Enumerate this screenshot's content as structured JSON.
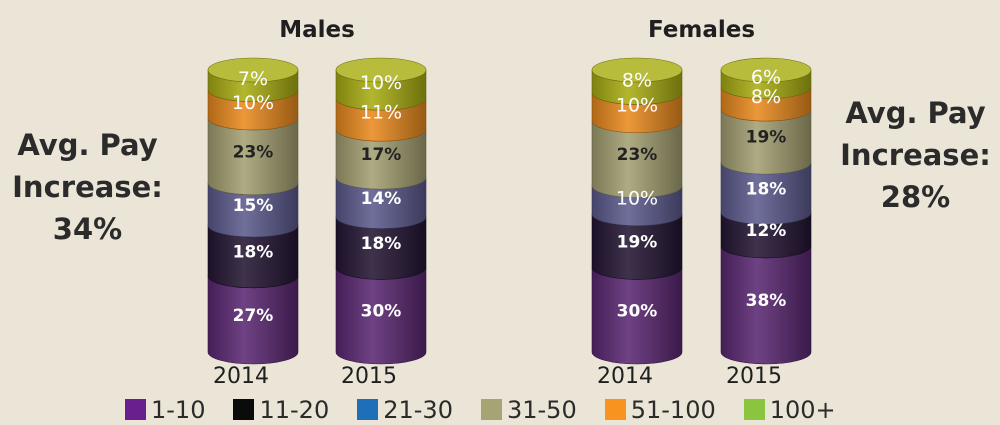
{
  "colors": {
    "background": "#eae5d7",
    "cats": [
      "#5a2872",
      "#251634",
      "#5c5b8d",
      "#a4a072",
      "#e98a1e",
      "#a9ad12"
    ],
    "legend_swatches": [
      "#6a1f8e",
      "#0b0b0b",
      "#1f6fb8",
      "#a6a474",
      "#f7931e",
      "#8bc53f"
    ]
  },
  "avg_left": {
    "line1": "Avg. Pay",
    "line2": "Increase:",
    "value": "34%"
  },
  "avg_right": {
    "line1": "Avg. Pay",
    "line2": "Increase:",
    "value": "28%"
  },
  "chart_data": {
    "type": "bar",
    "stacked": true,
    "style": "3d-cylinder",
    "categories": [
      "1-10",
      "11-20",
      "21-30",
      "31-50",
      "51-100",
      "100+"
    ],
    "legend_position": "bottom",
    "groups": [
      {
        "title": "Males",
        "bars": [
          {
            "x_label": "2014",
            "values": [
              27,
              18,
              15,
              23,
              10,
              7
            ]
          },
          {
            "x_label": "2015",
            "values": [
              30,
              18,
              14,
              17,
              11,
              10
            ]
          }
        ]
      },
      {
        "title": "Females",
        "bars": [
          {
            "x_label": "2014",
            "values": [
              30,
              19,
              10,
              23,
              10,
              8
            ]
          },
          {
            "x_label": "2015",
            "values": [
              38,
              12,
              18,
              19,
              8,
              6
            ]
          }
        ]
      }
    ]
  }
}
